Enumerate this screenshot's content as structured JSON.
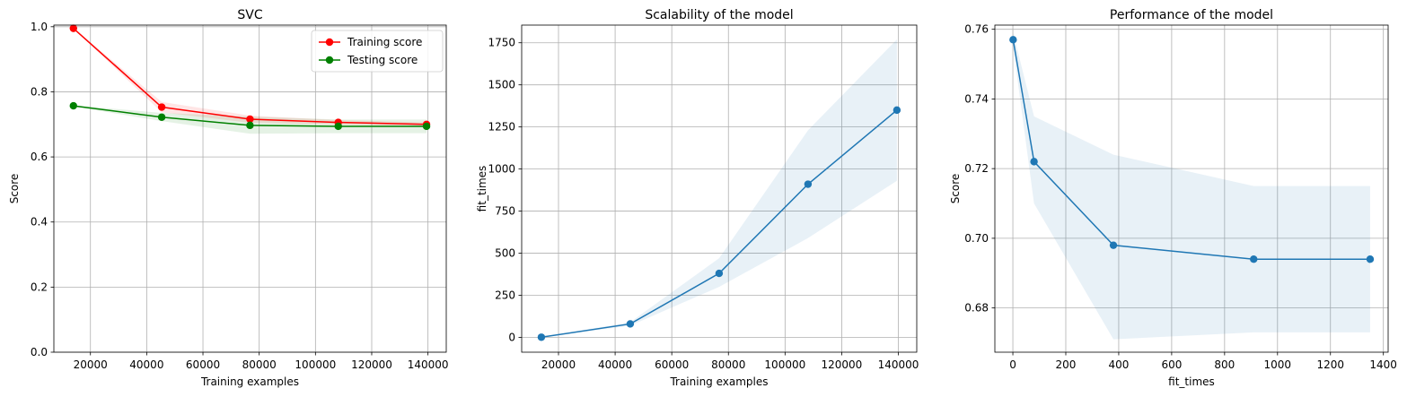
{
  "chart_data": [
    {
      "type": "line",
      "title": "SVC",
      "xlabel": "Training examples",
      "ylabel": "Score",
      "xlim": [
        7000,
        146500
      ],
      "ylim": [
        0.0,
        1.005
      ],
      "xticks": [
        20000,
        40000,
        60000,
        80000,
        100000,
        120000,
        140000
      ],
      "yticks": [
        0.0,
        0.2,
        0.4,
        0.6,
        0.8,
        1.0
      ],
      "xtick_labels": [
        "20000",
        "40000",
        "60000",
        "80000",
        "100000",
        "120000",
        "140000"
      ],
      "ytick_labels": [
        "0.0",
        "0.2",
        "0.4",
        "0.6",
        "0.8",
        "1.0"
      ],
      "grid": true,
      "legend": "top-right",
      "x": [
        13950,
        45335,
        76720,
        108105,
        139490
      ],
      "series": [
        {
          "name": "Training score",
          "color": "#ff0000",
          "values": [
            0.995,
            0.753,
            0.716,
            0.706,
            0.7
          ],
          "band_lower": [
            0.994,
            0.737,
            0.705,
            0.699,
            0.694
          ],
          "band_upper": [
            0.996,
            0.769,
            0.727,
            0.713,
            0.706
          ]
        },
        {
          "name": "Testing score",
          "color": "#008000",
          "values": [
            0.757,
            0.722,
            0.697,
            0.694,
            0.694
          ],
          "band_lower": [
            0.755,
            0.71,
            0.671,
            0.673,
            0.673
          ],
          "band_upper": [
            0.759,
            0.735,
            0.724,
            0.715,
            0.715
          ]
        }
      ]
    },
    {
      "type": "line",
      "title": "Scalability of the model",
      "xlabel": "Training examples",
      "ylabel": "fit_times",
      "xlim": [
        7000,
        146500
      ],
      "ylim": [
        -88,
        1855
      ],
      "xticks": [
        20000,
        40000,
        60000,
        80000,
        100000,
        120000,
        140000
      ],
      "yticks": [
        0,
        250,
        500,
        750,
        1000,
        1250,
        1500,
        1750
      ],
      "xtick_labels": [
        "20000",
        "40000",
        "60000",
        "80000",
        "100000",
        "120000",
        "140000"
      ],
      "ytick_labels": [
        "0",
        "250",
        "500",
        "750",
        "1000",
        "1250",
        "1500",
        "1750"
      ],
      "grid": true,
      "x": [
        13950,
        45335,
        76720,
        108105,
        139490
      ],
      "series": [
        {
          "color": "#1f77b4",
          "values": [
            1,
            80,
            380,
            910,
            1350
          ],
          "band_lower": [
            0,
            70,
            300,
            590,
            930
          ],
          "band_upper": [
            2,
            90,
            470,
            1230,
            1770
          ]
        }
      ]
    },
    {
      "type": "line",
      "title": "Performance of the model",
      "xlabel": "fit_times",
      "ylabel": "Score",
      "xlim": [
        -68,
        1418
      ],
      "ylim": [
        0.6673,
        0.7612
      ],
      "xticks": [
        0,
        200,
        400,
        600,
        800,
        1000,
        1200,
        1400
      ],
      "yticks": [
        0.68,
        0.7,
        0.72,
        0.74,
        0.76
      ],
      "xtick_labels": [
        "0",
        "200",
        "400",
        "600",
        "800",
        "1000",
        "1200",
        "1400"
      ],
      "ytick_labels": [
        "0.68",
        "0.70",
        "0.72",
        "0.74",
        "0.76"
      ],
      "grid": true,
      "x": [
        1,
        80,
        380,
        910,
        1350
      ],
      "series": [
        {
          "color": "#1f77b4",
          "values": [
            0.757,
            0.722,
            0.698,
            0.694,
            0.694
          ],
          "band_lower": [
            0.755,
            0.71,
            0.671,
            0.673,
            0.673
          ],
          "band_upper": [
            0.759,
            0.735,
            0.724,
            0.715,
            0.715
          ]
        }
      ]
    }
  ]
}
